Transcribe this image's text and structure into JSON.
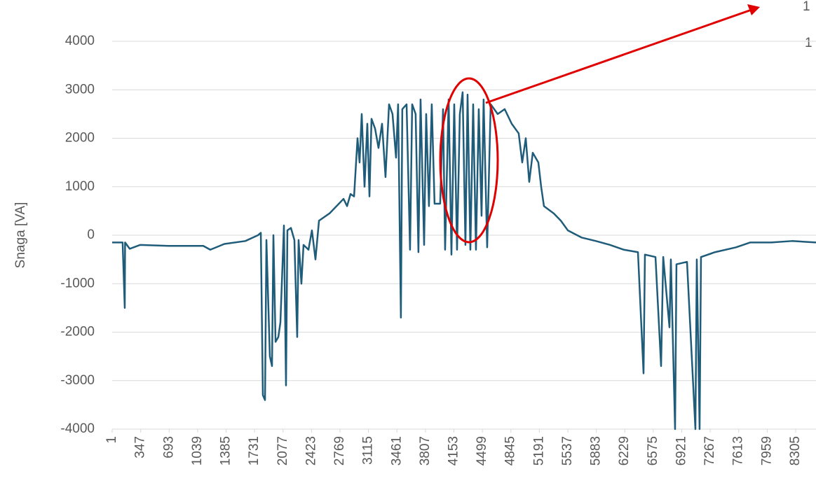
{
  "chart_data": {
    "type": "line",
    "y_label": "Snaga [VA]",
    "annotations": [
      "1",
      "1"
    ],
    "color": "#1f5c7a",
    "grid": true,
    "xlim": [
      1,
      8552
    ],
    "ylim": [
      -4000,
      4000
    ],
    "xticks": [
      1,
      347,
      693,
      1039,
      1385,
      1731,
      2077,
      2423,
      2769,
      3115,
      3461,
      3807,
      4153,
      4499,
      4845,
      5191,
      5537,
      5883,
      6229,
      6575,
      6921,
      7267,
      7613,
      7959,
      8305
    ],
    "yticks": [
      -4000,
      -3000,
      -2000,
      -1000,
      0,
      1000,
      2000,
      3000,
      4000
    ],
    "x": [
      1,
      128,
      154,
      158,
      214,
      342,
      683,
      1108,
      1193,
      1364,
      1619,
      1773,
      1807,
      1832,
      1858,
      1875,
      1917,
      1943,
      1960,
      1986,
      2020,
      2045,
      2088,
      2113,
      2130,
      2173,
      2215,
      2249,
      2266,
      2300,
      2326,
      2386,
      2428,
      2471,
      2514,
      2642,
      2812,
      2855,
      2897,
      2940,
      2982,
      3007,
      3033,
      3067,
      3101,
      3127,
      3152,
      3195,
      3237,
      3280,
      3322,
      3365,
      3407,
      3450,
      3475,
      3509,
      3526,
      3578,
      3620,
      3646,
      3688,
      3722,
      3748,
      3791,
      3816,
      3850,
      3884,
      3918,
      3986,
      4021,
      4046,
      4089,
      4123,
      4157,
      4191,
      4225,
      4259,
      4293,
      4319,
      4353,
      4387,
      4421,
      4455,
      4489,
      4514,
      4557,
      4600,
      4685,
      4770,
      4855,
      4940,
      4983,
      5026,
      5068,
      5111,
      5179,
      5213,
      5247,
      5366,
      5452,
      5537,
      5707,
      5878,
      6048,
      6218,
      6389,
      6457,
      6474,
      6602,
      6670,
      6696,
      6772,
      6789,
      6840,
      6857,
      6985,
      7087,
      7104,
      7138,
      7155,
      7325,
      7581,
      7751,
      8007,
      8262,
      8552
    ],
    "values": [
      -150,
      -150,
      -1500,
      -150,
      -280,
      -200,
      -220,
      -220,
      -300,
      -180,
      -120,
      0,
      50,
      -3300,
      -3400,
      -100,
      -2500,
      -2700,
      0,
      -2200,
      -2100,
      -1800,
      200,
      -3100,
      100,
      150,
      -100,
      -2100,
      -100,
      -1000,
      -200,
      -300,
      100,
      -500,
      300,
      450,
      750,
      600,
      850,
      800,
      2000,
      1500,
      2500,
      1000,
      2300,
      800,
      2400,
      2200,
      1800,
      2300,
      1200,
      2700,
      2500,
      1600,
      2700,
      -1700,
      2600,
      2700,
      -300,
      2700,
      2500,
      -350,
      2800,
      -200,
      2500,
      600,
      2700,
      650,
      650,
      2600,
      -300,
      2800,
      -400,
      2700,
      -300,
      2500,
      2950,
      -200,
      2900,
      -300,
      2700,
      -300,
      2600,
      400,
      2800,
      -250,
      2700,
      2500,
      2600,
      2300,
      2100,
      1500,
      2000,
      1100,
      1700,
      1500,
      1000,
      600,
      450,
      300,
      100,
      -50,
      -120,
      -200,
      -300,
      -350,
      -2850,
      -400,
      -450,
      -2700,
      -450,
      -1900,
      -500,
      -4000,
      -600,
      -550,
      -4000,
      -500,
      -4000,
      -450,
      -350,
      -250,
      -150,
      -150,
      -120,
      -150
    ]
  }
}
